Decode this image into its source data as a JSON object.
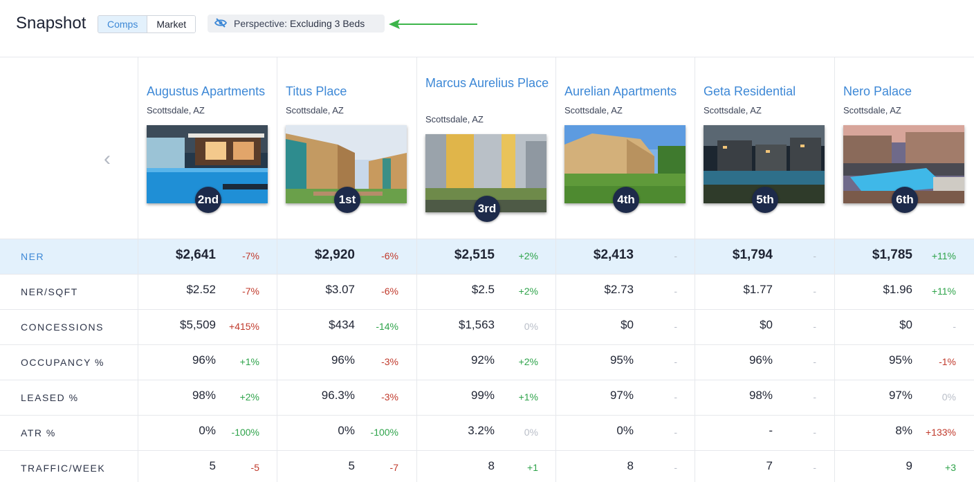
{
  "header": {
    "title": "Snapshot",
    "tabs": [
      "Comps",
      "Market"
    ],
    "perspective_label": "Perspective:",
    "perspective_value": "Excluding 3 Beds"
  },
  "properties": [
    {
      "name": "Augustus Apartments",
      "location": "Scottsdale, AZ",
      "rank": "2nd"
    },
    {
      "name": "Titus Place",
      "location": "Scottsdale, AZ",
      "rank": "1st"
    },
    {
      "name": "Marcus Aurelius Place",
      "location": "Scottsdale, AZ",
      "rank": "3rd"
    },
    {
      "name": "Aurelian Apartments",
      "location": "Scottsdale, AZ",
      "rank": "4th"
    },
    {
      "name": "Geta Residential",
      "location": "Scottsdale, AZ",
      "rank": "5th"
    },
    {
      "name": "Nero Palace",
      "location": "Scottsdale, AZ",
      "rank": "6th"
    }
  ],
  "metrics": [
    {
      "label": "NER",
      "cells": [
        {
          "value": "$2,641",
          "delta": "-7%",
          "trend": "neg"
        },
        {
          "value": "$2,920",
          "delta": "-6%",
          "trend": "neg"
        },
        {
          "value": "$2,515",
          "delta": "+2%",
          "trend": "pos"
        },
        {
          "value": "$2,413",
          "delta": "-",
          "trend": "neu"
        },
        {
          "value": "$1,794",
          "delta": "-",
          "trend": "neu"
        },
        {
          "value": "$1,785",
          "delta": "+11%",
          "trend": "pos"
        }
      ]
    },
    {
      "label": "NER/SQFT",
      "cells": [
        {
          "value": "$2.52",
          "delta": "-7%",
          "trend": "neg"
        },
        {
          "value": "$3.07",
          "delta": "-6%",
          "trend": "neg"
        },
        {
          "value": "$2.5",
          "delta": "+2%",
          "trend": "pos"
        },
        {
          "value": "$2.73",
          "delta": "-",
          "trend": "neu"
        },
        {
          "value": "$1.77",
          "delta": "-",
          "trend": "neu"
        },
        {
          "value": "$1.96",
          "delta": "+11%",
          "trend": "pos"
        }
      ]
    },
    {
      "label": "CONCESSIONS",
      "cells": [
        {
          "value": "$5,509",
          "delta": "+415%",
          "trend": "neg"
        },
        {
          "value": "$434",
          "delta": "-14%",
          "trend": "pos"
        },
        {
          "value": "$1,563",
          "delta": "0%",
          "trend": "neu"
        },
        {
          "value": "$0",
          "delta": "-",
          "trend": "neu"
        },
        {
          "value": "$0",
          "delta": "-",
          "trend": "neu"
        },
        {
          "value": "$0",
          "delta": "-",
          "trend": "neu"
        }
      ]
    },
    {
      "label": "OCCUPANCY %",
      "cells": [
        {
          "value": "96%",
          "delta": "+1%",
          "trend": "pos"
        },
        {
          "value": "96%",
          "delta": "-3%",
          "trend": "neg"
        },
        {
          "value": "92%",
          "delta": "+2%",
          "trend": "pos"
        },
        {
          "value": "95%",
          "delta": "-",
          "trend": "neu"
        },
        {
          "value": "96%",
          "delta": "-",
          "trend": "neu"
        },
        {
          "value": "95%",
          "delta": "-1%",
          "trend": "neg"
        }
      ]
    },
    {
      "label": "LEASED %",
      "cells": [
        {
          "value": "98%",
          "delta": "+2%",
          "trend": "pos"
        },
        {
          "value": "96.3%",
          "delta": "-3%",
          "trend": "neg"
        },
        {
          "value": "99%",
          "delta": "+1%",
          "trend": "pos"
        },
        {
          "value": "97%",
          "delta": "-",
          "trend": "neu"
        },
        {
          "value": "98%",
          "delta": "-",
          "trend": "neu"
        },
        {
          "value": "97%",
          "delta": "0%",
          "trend": "neu"
        }
      ]
    },
    {
      "label": "ATR %",
      "cells": [
        {
          "value": "0%",
          "delta": "-100%",
          "trend": "pos"
        },
        {
          "value": "0%",
          "delta": "-100%",
          "trend": "pos"
        },
        {
          "value": "3.2%",
          "delta": "0%",
          "trend": "neu"
        },
        {
          "value": "0%",
          "delta": "-",
          "trend": "neu"
        },
        {
          "value": "-",
          "delta": "-",
          "trend": "neu"
        },
        {
          "value": "8%",
          "delta": "+133%",
          "trend": "neg"
        }
      ]
    },
    {
      "label": "TRAFFIC/WEEK",
      "cells": [
        {
          "value": "5",
          "delta": "-5",
          "trend": "neg"
        },
        {
          "value": "5",
          "delta": "-7",
          "trend": "neg"
        },
        {
          "value": "8",
          "delta": "+1",
          "trend": "pos"
        },
        {
          "value": "8",
          "delta": "-",
          "trend": "neu"
        },
        {
          "value": "7",
          "delta": "-",
          "trend": "neu"
        },
        {
          "value": "9",
          "delta": "+3",
          "trend": "pos"
        }
      ]
    }
  ],
  "icons": {
    "perspective": "eye-slash-icon",
    "prev": "chevron-left-icon",
    "annotation": "arrow-left-icon"
  },
  "colors": {
    "accent": "#3d88d6",
    "highlight_row": "#e3f1fc",
    "negative": "#c0392b",
    "positive": "#2ea34a",
    "neutral": "#b9bec8",
    "rank_badge": "#1d2a4a",
    "annotation_arrow": "#3cb54a"
  }
}
